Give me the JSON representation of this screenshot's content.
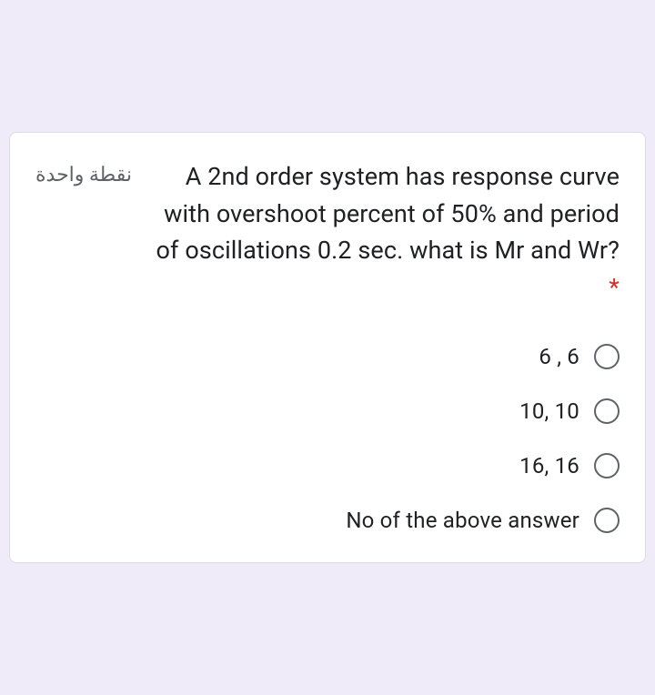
{
  "card": {
    "border_color": "#dadce0",
    "background_color": "#ffffff",
    "border_radius": 8
  },
  "question": {
    "text": "A 2nd order system has response curve with overshoot percent of 50% and period of oscillations 0.2 sec. what is Mr and Wr?",
    "required_marker": "*",
    "points_label": "نقطة واحدة",
    "text_color": "#202124",
    "required_color": "#d93025",
    "points_color": "#5f6368",
    "question_fontsize": 27,
    "points_fontsize": 22
  },
  "options": [
    {
      "label": "6 , 6"
    },
    {
      "label": "10, 10"
    },
    {
      "label": "16, 16"
    },
    {
      "label": "No of the above answer"
    }
  ],
  "option_style": {
    "label_color": "#202124",
    "label_fontsize": 24,
    "radio_border_color": "#5f6368",
    "radio_size": 28
  }
}
